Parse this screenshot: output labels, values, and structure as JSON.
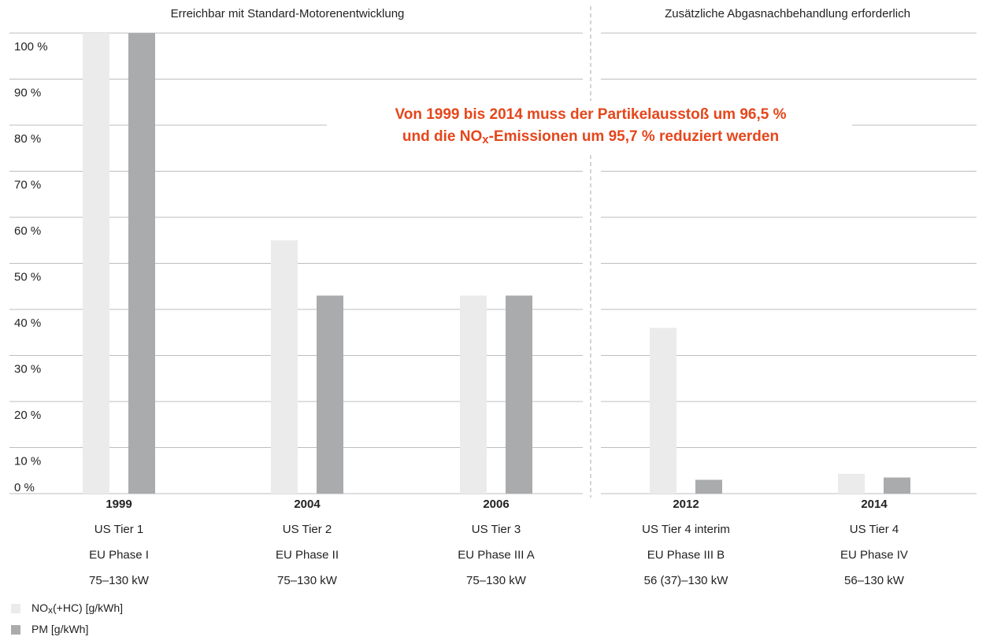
{
  "chart_data": {
    "type": "bar",
    "section_labels": [
      "Erreichbar mit Standard-Motorenentwicklung",
      "Zusätzliche Abgasnachbehandlung erforderlich"
    ],
    "annotation": [
      [
        {
          "text": "Von 1999 bis 2014 muss der Partikelausstoß um 96,5 %"
        }
      ],
      [
        {
          "text": "und die NO"
        },
        {
          "text": "x",
          "sub": true
        },
        {
          "text": "-Emissionen um 95,7 % reduziert werden"
        }
      ]
    ],
    "categories": [
      "1999",
      "2004",
      "2006",
      "2012",
      "2014"
    ],
    "category_details": [
      [
        "US Tier 1",
        "EU Phase I",
        "75–130 kW"
      ],
      [
        "US Tier 2",
        "EU Phase II",
        "75–130 kW"
      ],
      [
        "US Tier 3",
        "EU Phase III A",
        "75–130 kW"
      ],
      [
        "US Tier 4 interim",
        "EU Phase III B",
        "56 (37)–130 kW"
      ],
      [
        "US Tier 4",
        "EU Phase IV",
        "56–130 kW"
      ]
    ],
    "series": [
      {
        "name": [
          {
            "text": "NO"
          },
          {
            "text": "x",
            "sub": true
          },
          {
            "text": "(+HC) [g/kWh]"
          }
        ],
        "color": "#ebebeb",
        "values": [
          100,
          55,
          43,
          36,
          4.3
        ]
      },
      {
        "name": [
          {
            "text": "PM [g/kWh]"
          }
        ],
        "color": "#aaabad",
        "values": [
          100,
          43,
          43,
          3,
          3.5
        ]
      }
    ],
    "ylim": [
      0,
      100
    ],
    "yticks": [
      {
        "value": 0,
        "label": "0 %"
      },
      {
        "value": 10,
        "label": "10 %"
      },
      {
        "value": 20,
        "label": "20 %"
      },
      {
        "value": 30,
        "label": "30 %"
      },
      {
        "value": 40,
        "label": "40 %"
      },
      {
        "value": 50,
        "label": "50 %"
      },
      {
        "value": 60,
        "label": "60 %"
      },
      {
        "value": 70,
        "label": "70 %"
      },
      {
        "value": 80,
        "label": "80 %"
      },
      {
        "value": 90,
        "label": "90 %"
      },
      {
        "value": 100,
        "label": "100 %"
      }
    ],
    "grid": true
  }
}
